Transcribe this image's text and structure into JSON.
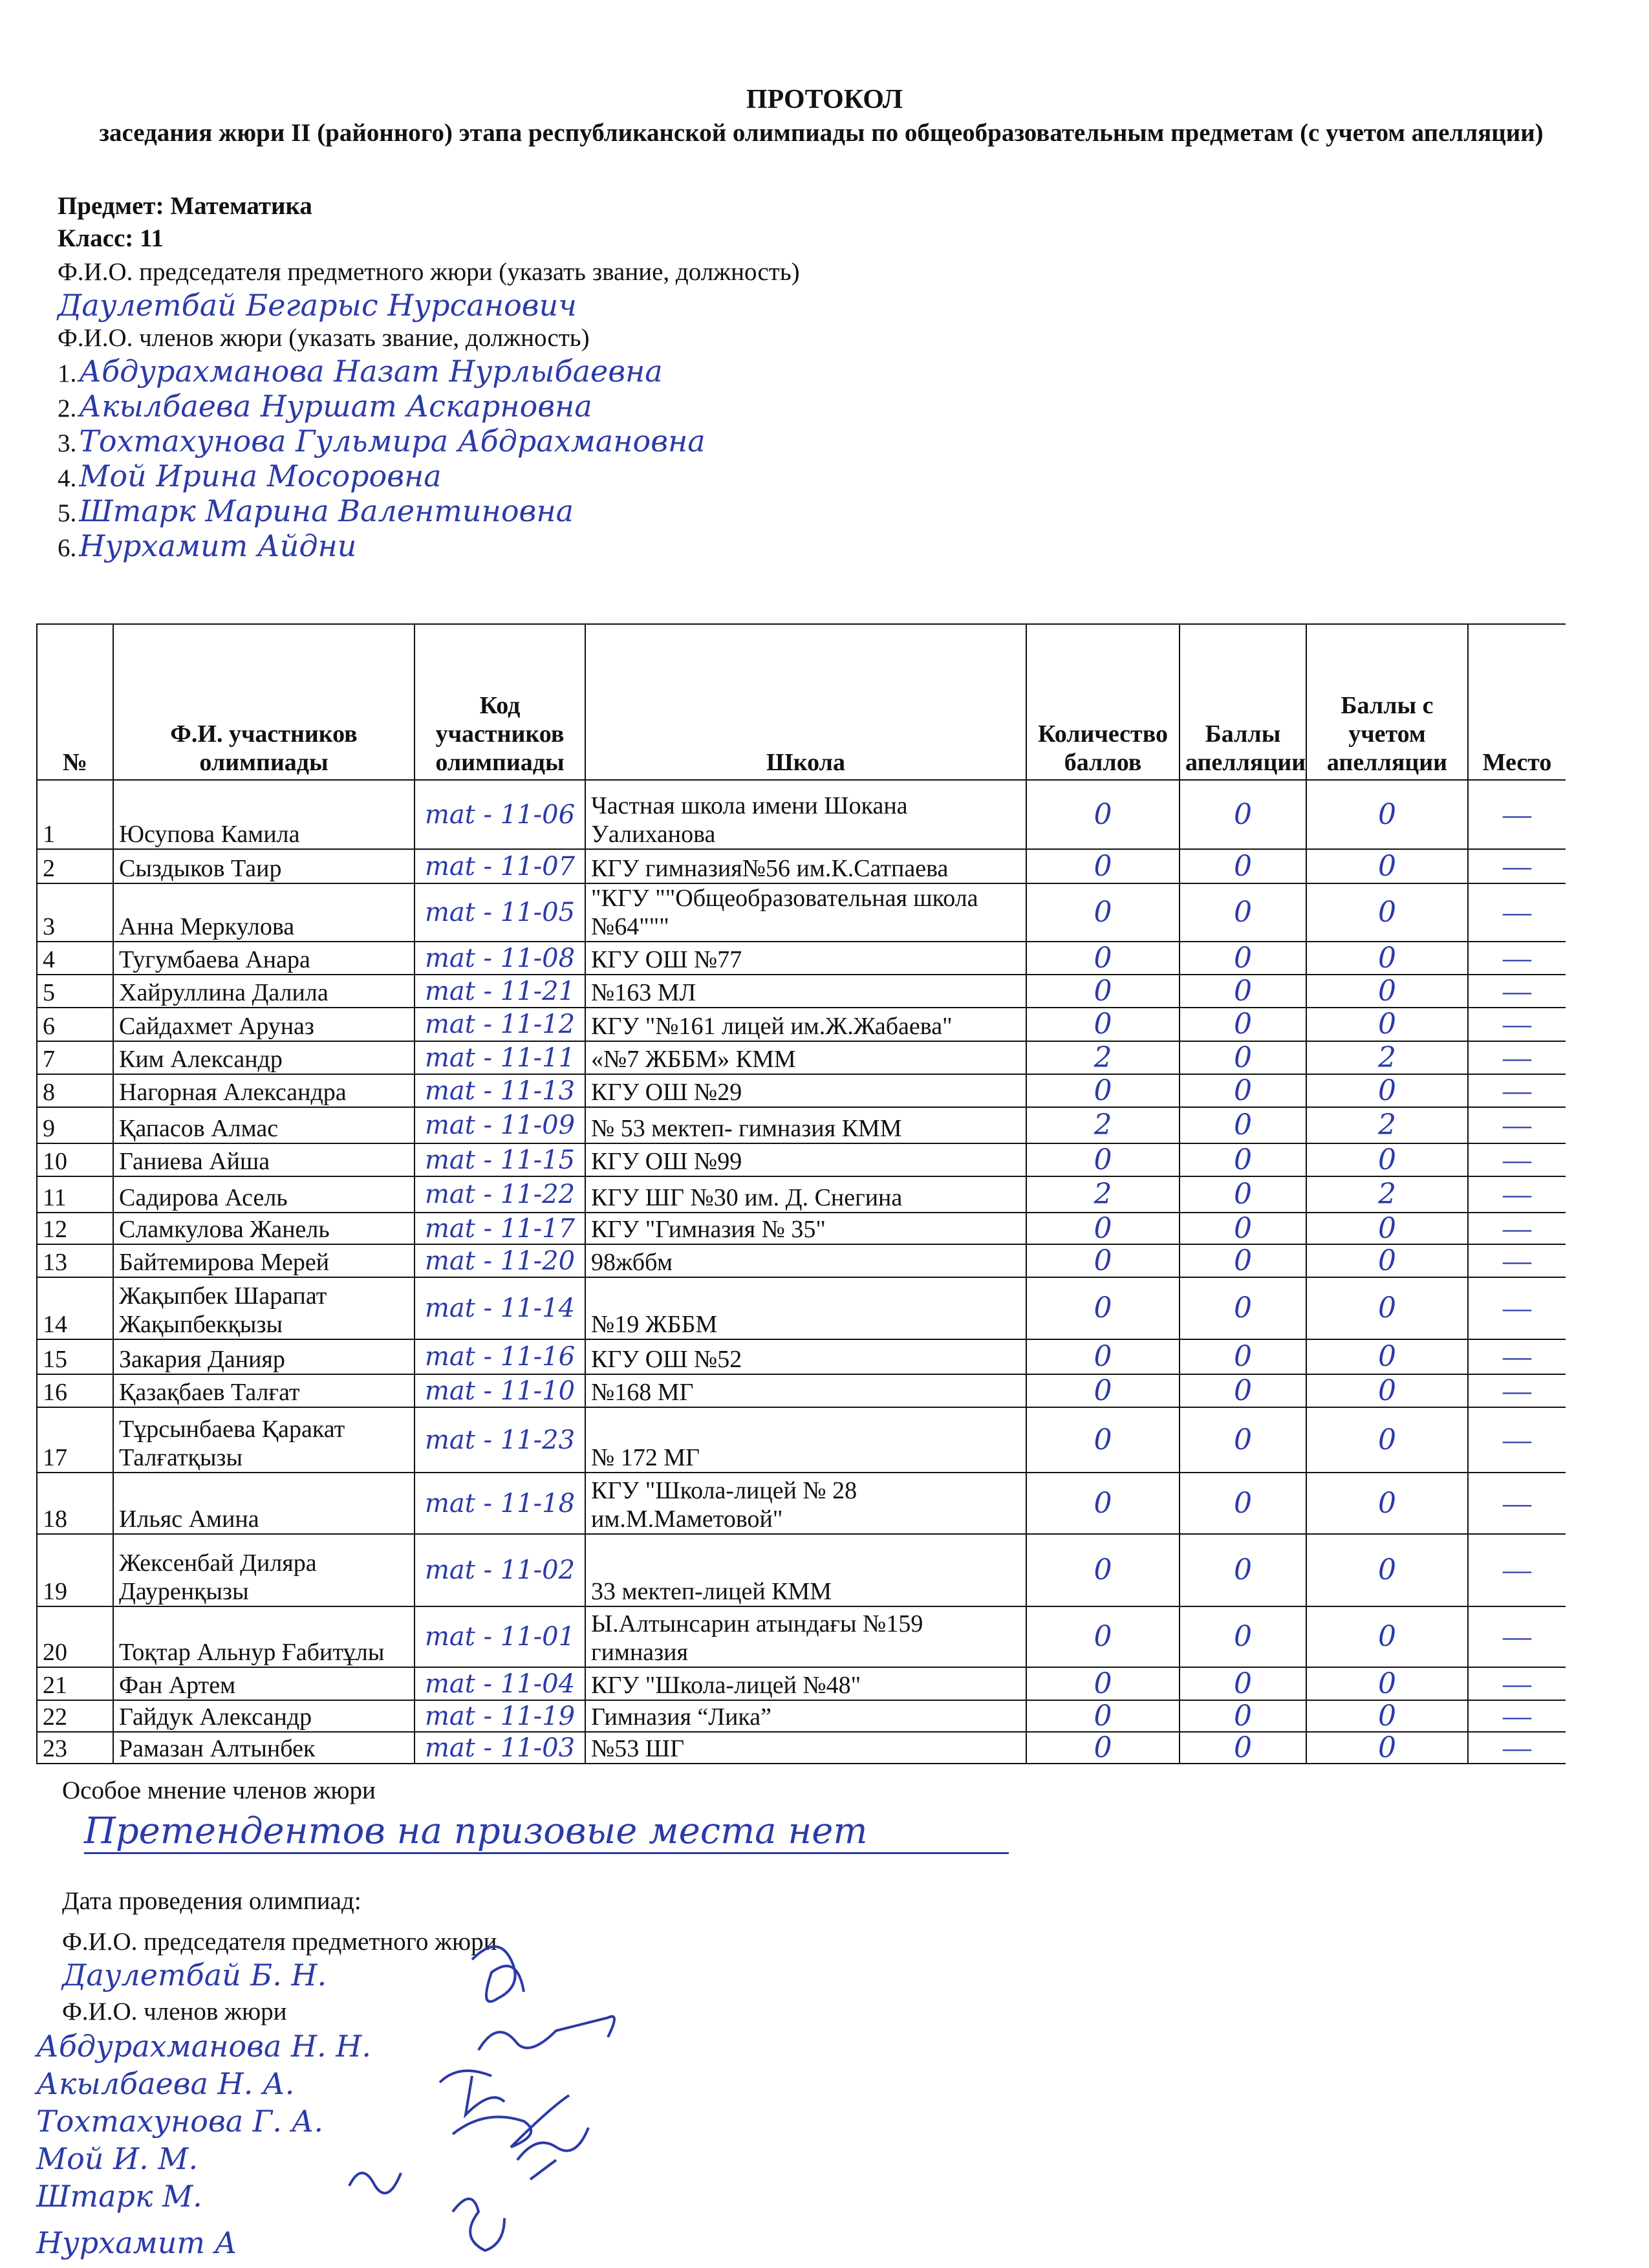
{
  "header": {
    "title": "ПРОТОКОЛ",
    "subtitle": "заседания жюри II (районного) этапа республиканской олимпиады по общеобразовательным предметам (с учетом апелляции)",
    "subject": "Предмет: Математика",
    "class": "Класс: 11",
    "chair_label": "Ф.И.О. председателя предметного жюри (указать звание, должность)",
    "chair_name": "Даулетбай Бегарыс Нурсанович",
    "members_label": "Ф.И.О. членов жюри (указать звание, должность)",
    "members": [
      {
        "num": "1.",
        "name": "Абдурахманова Назат Нурлыбаевна"
      },
      {
        "num": "2.",
        "name": "Акылбаева Нуршат Аскарновна"
      },
      {
        "num": "3.",
        "name": "Тохтахунова Гульмира Абдрахмановна"
      },
      {
        "num": "4.",
        "name": "Мой Ирина Мосоровна"
      },
      {
        "num": "5.",
        "name": "Штарк Марина Валентиновна"
      },
      {
        "num": "6.",
        "name": "Нурхамит Айдни"
      }
    ]
  },
  "table": {
    "columns": [
      "№",
      "Ф.И. участников олимпиады",
      "Код участников олимпиады",
      "Школа",
      "Количество баллов",
      "Баллы апелляции",
      "Баллы с учетом апелляции",
      "Место"
    ],
    "rows": [
      {
        "n": "1",
        "name": "Юсупова Камила",
        "code": "mat - 11-06",
        "school": "Частная школа имени Шокана Уалиханова",
        "score": "0",
        "appeal": "0",
        "total": "0",
        "place": "—"
      },
      {
        "n": "2",
        "name": "Сыздыков Таир",
        "code": "mat - 11-07",
        "school": "КГУ гимназия№56 им.К.Сатпаева",
        "score": "0",
        "appeal": "0",
        "total": "0",
        "place": "—"
      },
      {
        "n": "3",
        "name": "Анна Меркулова",
        "code": "mat - 11-05",
        "school": "\"КГУ \"\"Общеобразовательная школа №64\"\"\"",
        "score": "0",
        "appeal": "0",
        "total": "0",
        "place": "—"
      },
      {
        "n": "4",
        "name": "Тугумбаева Анара",
        "code": "mat - 11-08",
        "school": "КГУ ОШ №77",
        "score": "0",
        "appeal": "0",
        "total": "0",
        "place": "—"
      },
      {
        "n": "5",
        "name": "Хайруллина Далила",
        "code": "mat - 11-21",
        "school": "№163 МЛ",
        "score": "0",
        "appeal": "0",
        "total": "0",
        "place": "—"
      },
      {
        "n": "6",
        "name": "Сайдахмет Аруназ",
        "code": "mat - 11-12",
        "school": "КГУ \"№161 лицей им.Ж.Жабаева\"",
        "score": "0",
        "appeal": "0",
        "total": "0",
        "place": "—"
      },
      {
        "n": "7",
        "name": "Ким Александр",
        "code": "mat - 11-11",
        "school": "«№7 ЖББМ» КММ",
        "score": "2",
        "appeal": "0",
        "total": "2",
        "place": "—"
      },
      {
        "n": "8",
        "name": "Нагорная Александра",
        "code": "mat - 11-13",
        "school": "КГУ ОШ №29",
        "score": "0",
        "appeal": "0",
        "total": "0",
        "place": "—"
      },
      {
        "n": "9",
        "name": "Қапасов Алмас",
        "code": "mat - 11-09",
        "school": "№ 53 мектеп- гимназия КММ",
        "score": "2",
        "appeal": "0",
        "total": "2",
        "place": "—"
      },
      {
        "n": "10",
        "name": "Ганиева Айша",
        "code": "mat - 11-15",
        "school": "КГУ ОШ №99",
        "score": "0",
        "appeal": "0",
        "total": "0",
        "place": "—"
      },
      {
        "n": "11",
        "name": "Садирова Асель",
        "code": "mat - 11-22",
        "school": "КГУ ШГ №30 им. Д. Снегина",
        "score": "2",
        "appeal": "0",
        "total": "2",
        "place": "—"
      },
      {
        "n": "12",
        "name": "Сламкулова Жанель",
        "code": "mat - 11-17",
        "school": "КГУ \"Гимназия № 35\"",
        "score": "0",
        "appeal": "0",
        "total": "0",
        "place": "—"
      },
      {
        "n": "13",
        "name": "Байтемирова Мерей",
        "code": "mat - 11-20",
        "school": "98жббм",
        "score": "0",
        "appeal": "0",
        "total": "0",
        "place": "—"
      },
      {
        "n": "14",
        "name": "Жақыпбек Шарапат Жақыпбекқызы",
        "code": "mat - 11-14",
        "school": "№19 ЖББМ",
        "score": "0",
        "appeal": "0",
        "total": "0",
        "place": "—"
      },
      {
        "n": "15",
        "name": "Закария Данияр",
        "code": "mat - 11-16",
        "school": "КГУ ОШ №52",
        "score": "0",
        "appeal": "0",
        "total": "0",
        "place": "—"
      },
      {
        "n": "16",
        "name": "Қазақбаев Талғат",
        "code": "mat - 11-10",
        "school": "№168 МГ",
        "score": "0",
        "appeal": "0",
        "total": "0",
        "place": "—"
      },
      {
        "n": "17",
        "name": "Тұрсынбаева Қаракат Талғатқызы",
        "code": "mat - 11-23",
        "school": "№ 172 МГ",
        "score": "0",
        "appeal": "0",
        "total": "0",
        "place": "—"
      },
      {
        "n": "18",
        "name": "Ильяс Амина",
        "code": "mat - 11-18",
        "school": "КГУ \"Школа-лицей № 28 им.М.Маметовой\"",
        "score": "0",
        "appeal": "0",
        "total": "0",
        "place": "—"
      },
      {
        "n": "19",
        "name": "Жексенбай Диляра Дауренқызы",
        "code": "mat - 11-02",
        "school": "33 мектеп-лицей КММ",
        "score": "0",
        "appeal": "0",
        "total": "0",
        "place": "—"
      },
      {
        "n": "20",
        "name": "Тоқтар Альнур Ғабитұлы",
        "code": "mat - 11-01",
        "school": "Ы.Алтынсарин атындағы №159 гимназия",
        "score": "0",
        "appeal": "0",
        "total": "0",
        "place": "—"
      },
      {
        "n": "21",
        "name": "Фан Артем",
        "code": "mat - 11-04",
        "school": "КГУ \"Школа-лицей №48\"",
        "score": "0",
        "appeal": "0",
        "total": "0",
        "place": "—"
      },
      {
        "n": "22",
        "name": "Гайдук Александр",
        "code": "mat - 11-19",
        "school": "Гимназия “Лика”",
        "score": "0",
        "appeal": "0",
        "total": "0",
        "place": "—"
      },
      {
        "n": "23",
        "name": "Рамазан Алтынбек",
        "code": "mat - 11-03",
        "school": "№53 ШГ",
        "score": "0",
        "appeal": "0",
        "total": "0",
        "place": "—"
      }
    ]
  },
  "footer": {
    "opinion_label": "Особое мнение членов жюри",
    "opinion_value": "Претендентов на призовые места нет",
    "date_label": "Дата проведения олимпиад:",
    "chair_label": "Ф.И.О. председателя предметного жюри",
    "chair_signed": "Даулетбай Б. Н.",
    "members_label": "Ф.И.О. членов жюри",
    "members_signed": [
      "Абдурахманова Н. Н.",
      "Акылбаева Н. А.",
      "Тохтахунова Г. А.",
      "Мой И. М.",
      "Штарк М.",
      "Нурхамит А"
    ]
  },
  "colors": {
    "ink": "#2b3aa8",
    "text": "#111111"
  }
}
